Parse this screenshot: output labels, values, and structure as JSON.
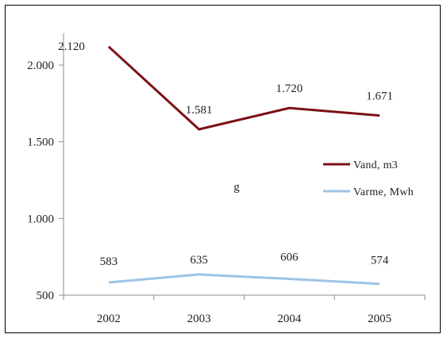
{
  "chart_data": {
    "type": "line",
    "categories": [
      "2002",
      "2003",
      "2004",
      "2005"
    ],
    "series": [
      {
        "name": "Vand, m3",
        "color": "#7b1116",
        "values": [
          2120,
          1581,
          1720,
          1671
        ],
        "labels": [
          "2.120",
          "1.581",
          "1.720",
          "1.671"
        ]
      },
      {
        "name": "Varme, Mwh",
        "color": "#9dc3e6",
        "values": [
          583,
          635,
          606,
          574
        ],
        "labels": [
          "583",
          "635",
          "606",
          "574"
        ]
      }
    ],
    "yticks": [
      500,
      1000,
      1500,
      2000
    ],
    "ytick_labels": [
      "500",
      "1.000",
      "1.500",
      "2.000"
    ],
    "ylim": [
      500,
      2000
    ],
    "title": "",
    "xlabel": "",
    "ylabel": "",
    "legend_position": "right",
    "stray_text": "g",
    "grid": false
  }
}
